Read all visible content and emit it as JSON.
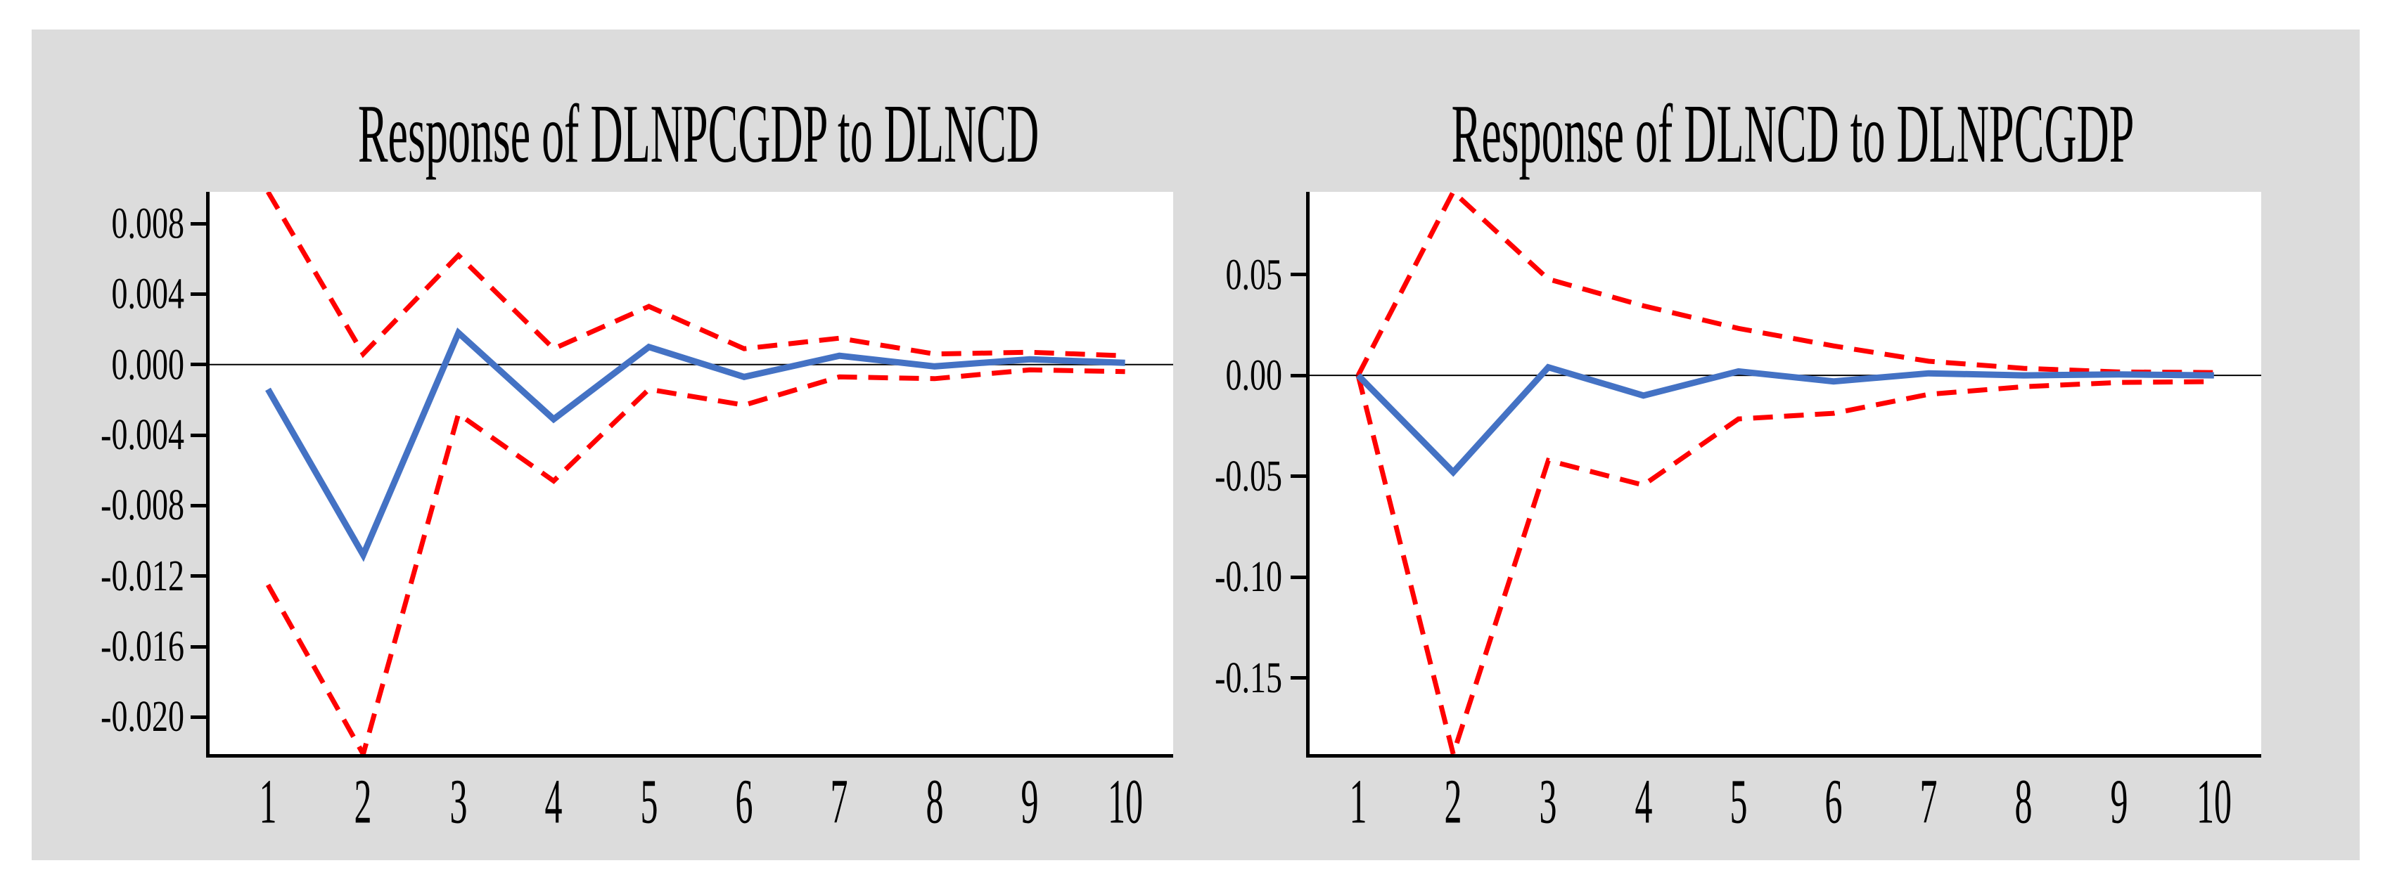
{
  "page": {
    "background": "#ffffff",
    "panel_background": "#dcdcdc",
    "plot_background": "#ffffff"
  },
  "colors": {
    "response_line": "#4472c4",
    "band_line": "#ff0000",
    "zero_line": "#000000",
    "axis": "#000000",
    "text": "#000000"
  },
  "chart_data": [
    {
      "type": "line",
      "title": "Response of DLNPCGDP to DLNCD",
      "x": [
        1,
        2,
        3,
        4,
        5,
        6,
        7,
        8,
        9,
        10
      ],
      "xtick_labels": [
        "1",
        "2",
        "3",
        "4",
        "5",
        "6",
        "7",
        "8",
        "9",
        "10"
      ],
      "ytick_labels": [
        "0.008",
        "0.004",
        "0.000",
        "-0.004",
        "-0.008",
        "-0.012",
        "-0.016",
        "-0.020"
      ],
      "ytick_values": [
        0.008,
        0.004,
        0.0,
        -0.004,
        -0.008,
        -0.012,
        -0.016,
        -0.02
      ],
      "ylim": [
        -0.0221,
        0.0098
      ],
      "grid": false,
      "legend": false,
      "zero_line": true,
      "series": [
        {
          "name": "response",
          "style": "solid",
          "color": "#4472c4",
          "values": [
            -0.0014,
            -0.0108,
            0.0018,
            -0.0031,
            0.001,
            -0.0007,
            0.0005,
            -0.0001,
            0.0003,
            0.0001
          ]
        },
        {
          "name": "upper-band",
          "style": "dashed",
          "color": "#ff0000",
          "values": [
            0.0098,
            0.0006,
            0.0062,
            0.0009,
            0.0033,
            0.0009,
            0.0015,
            0.0006,
            0.0007,
            0.0005
          ]
        },
        {
          "name": "lower-band",
          "style": "dashed",
          "color": "#ff0000",
          "values": [
            -0.0125,
            -0.0221,
            -0.0028,
            -0.0066,
            -0.0014,
            -0.0023,
            -0.0007,
            -0.0008,
            -0.0003,
            -0.0004
          ]
        }
      ]
    },
    {
      "type": "line",
      "title": "Response of DLNCD to DLNPCGDP",
      "x": [
        1,
        2,
        3,
        4,
        5,
        6,
        7,
        8,
        9,
        10
      ],
      "xtick_labels": [
        "1",
        "2",
        "3",
        "4",
        "5",
        "6",
        "7",
        "8",
        "9",
        "10"
      ],
      "ytick_labels": [
        "0.05",
        "0.00",
        "-0.05",
        "-0.10",
        "-0.15"
      ],
      "ytick_values": [
        0.05,
        0.0,
        -0.05,
        -0.1,
        -0.15
      ],
      "ylim": [
        -0.1878,
        0.091
      ],
      "grid": false,
      "legend": false,
      "zero_line": true,
      "series": [
        {
          "name": "response",
          "style": "solid",
          "color": "#4472c4",
          "values": [
            0.0,
            -0.048,
            0.004,
            -0.01,
            0.002,
            -0.003,
            0.001,
            0.0,
            0.0005,
            0.0
          ]
        },
        {
          "name": "upper-band",
          "style": "dashed",
          "color": "#ff0000",
          "values": [
            0.0,
            0.091,
            0.0477,
            0.0345,
            0.0233,
            0.0146,
            0.007,
            0.0035,
            0.0017,
            0.0014
          ]
        },
        {
          "name": "lower-band",
          "style": "dashed",
          "color": "#ff0000",
          "values": [
            0.0,
            -0.1878,
            -0.0422,
            -0.0544,
            -0.0216,
            -0.0188,
            -0.0094,
            -0.0056,
            -0.0035,
            -0.0031
          ]
        }
      ]
    }
  ]
}
